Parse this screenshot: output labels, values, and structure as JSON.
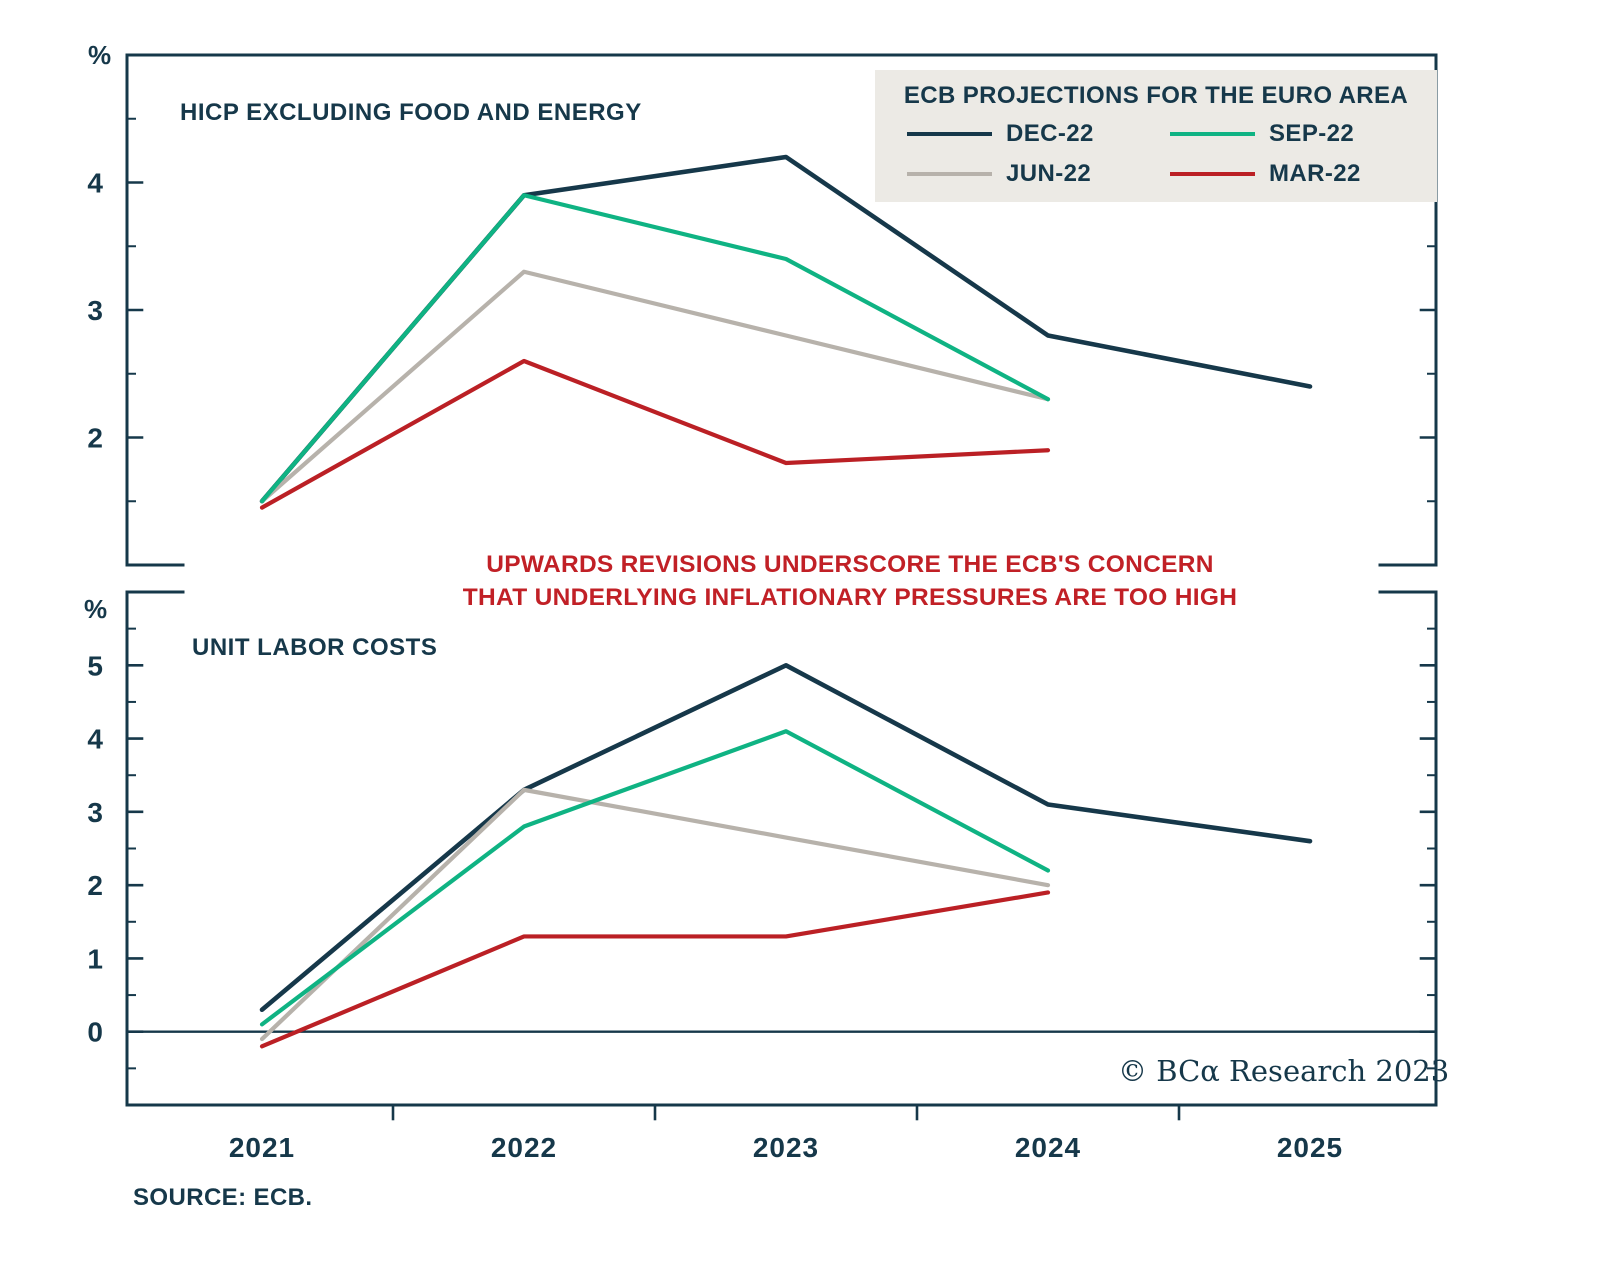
{
  "colors": {
    "navy": "#16384a",
    "green": "#0fb383",
    "gray": "#b7b2ab",
    "red": "#bb2025",
    "annotation_red": "#c12026",
    "legend_bg": "#eceae5"
  },
  "legend": {
    "title": "ECB PROJECTIONS FOR THE EURO AREA",
    "entries": [
      {
        "label": "DEC-22",
        "color": "#16384a"
      },
      {
        "label": "SEP-22",
        "color": "#0fb383"
      },
      {
        "label": "JUN-22",
        "color": "#b7b2ab"
      },
      {
        "label": "MAR-22",
        "color": "#bb2025"
      }
    ]
  },
  "annotation": {
    "line1": "UPWARDS REVISIONS UNDERSCORE THE ECB'S CONCERN",
    "line2": "THAT UNDERLYING INFLATIONARY PRESSURES ARE TOO HIGH"
  },
  "x_axis": {
    "labels": [
      "2021",
      "2022",
      "2023",
      "2024",
      "2025"
    ]
  },
  "source": "SOURCE: ECB.",
  "copyright": "© BCα Research 2023",
  "chart_data": [
    {
      "type": "line",
      "title": "HICP EXCLUDING FOOD AND ENERGY",
      "ylabel": "%",
      "x": [
        2021,
        2022,
        2023,
        2024,
        2025
      ],
      "ylim": [
        1,
        5
      ],
      "yticks": [
        2,
        3,
        4
      ],
      "grid": false,
      "legend_position": "top-right",
      "series": [
        {
          "name": "DEC-22",
          "color": "#16384a",
          "values": [
            1.5,
            3.9,
            4.2,
            2.8,
            2.4
          ]
        },
        {
          "name": "SEP-22",
          "color": "#0fb383",
          "values": [
            1.5,
            3.9,
            3.4,
            2.3,
            null
          ]
        },
        {
          "name": "JUN-22",
          "color": "#b7b2ab",
          "values": [
            1.5,
            3.3,
            2.8,
            2.3,
            null
          ]
        },
        {
          "name": "MAR-22",
          "color": "#bb2025",
          "values": [
            1.45,
            2.6,
            1.8,
            1.9,
            null
          ]
        }
      ]
    },
    {
      "type": "line",
      "title": "UNIT LABOR COSTS",
      "ylabel": "%",
      "x": [
        2021,
        2022,
        2023,
        2024,
        2025
      ],
      "ylim": [
        -1,
        6
      ],
      "yticks": [
        0,
        1,
        2,
        3,
        4,
        5
      ],
      "zero_line": true,
      "grid": false,
      "series": [
        {
          "name": "DEC-22",
          "color": "#16384a",
          "values": [
            0.3,
            3.3,
            5.0,
            3.1,
            2.6
          ]
        },
        {
          "name": "SEP-22",
          "color": "#0fb383",
          "values": [
            0.1,
            2.8,
            4.1,
            2.2,
            null
          ]
        },
        {
          "name": "JUN-22",
          "color": "#b7b2ab",
          "values": [
            -0.1,
            3.3,
            2.65,
            2.0,
            null
          ]
        },
        {
          "name": "MAR-22",
          "color": "#bb2025",
          "values": [
            -0.2,
            1.3,
            1.3,
            1.9,
            null
          ]
        }
      ]
    }
  ]
}
